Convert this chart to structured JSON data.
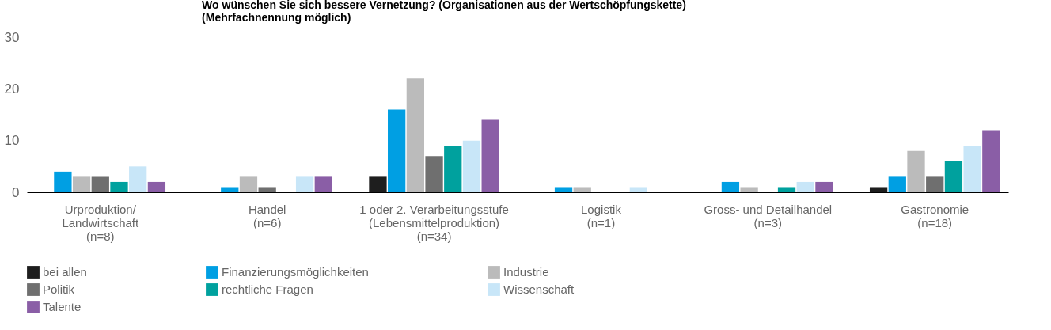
{
  "chart_data": {
    "type": "bar",
    "title": "Wo wünschen Sie sich bessere Vernetzung? (Organisationen aus der Wertschöpfungskette)\n(Mehrfachnennung möglich)",
    "categories": [
      "Urproduktion/\nLandwirtschaft\n(n=8)",
      "Handel\n(n=6)",
      "1 oder 2. Verarbeitungsstufe\n(Lebensmittelproduktion)\n(n=34)",
      "Logistik\n(n=1)",
      "Gross- und Detailhandel\n(n=3)",
      "Gastronomie\n(n=18)"
    ],
    "series": [
      {
        "name": "bei allen",
        "color": "#1e1e1e",
        "values": [
          0,
          0,
          3,
          0,
          0,
          1
        ]
      },
      {
        "name": "Finanzierungsmöglichkeiten",
        "color": "#009fe3",
        "values": [
          4,
          1,
          16,
          1,
          2,
          3
        ]
      },
      {
        "name": "Industrie",
        "color": "#bbbbbb",
        "values": [
          3,
          3,
          22,
          1,
          1,
          8
        ]
      },
      {
        "name": "Politik",
        "color": "#6f6f6f",
        "values": [
          3,
          1,
          7,
          0,
          0,
          3
        ]
      },
      {
        "name": "rechtliche Fragen",
        "color": "#00a19e",
        "values": [
          2,
          0,
          9,
          0,
          1,
          6
        ]
      },
      {
        "name": "Wissenschaft",
        "color": "#c8e6f8",
        "values": [
          5,
          3,
          10,
          1,
          2,
          9
        ]
      },
      {
        "name": "Talente",
        "color": "#8a5ea6",
        "values": [
          2,
          3,
          14,
          0,
          2,
          12
        ]
      }
    ],
    "ylim": [
      0,
      30
    ],
    "yticks": [
      0,
      10,
      20,
      30
    ],
    "grid": false,
    "legend": "bottom"
  }
}
